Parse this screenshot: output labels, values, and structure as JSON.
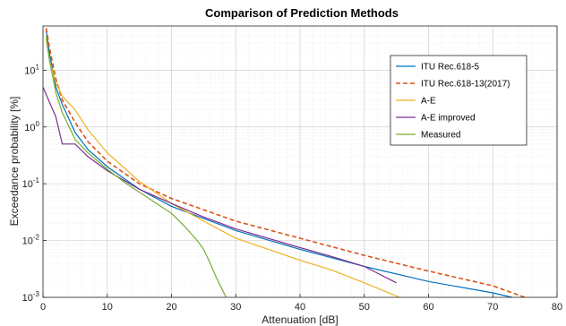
{
  "chart_data": {
    "type": "line",
    "title": "Comparison of Prediction Methods",
    "xlabel": "Attenuation [dB]",
    "ylabel": "Exceedance probability [%]",
    "xlim": [
      0,
      80
    ],
    "ylim": [
      0.001,
      60
    ],
    "yscale": "log",
    "grid": true,
    "minor_grid": true,
    "legend_position": "top-right",
    "x_ticks": [
      0,
      10,
      20,
      30,
      40,
      50,
      60,
      70,
      80
    ],
    "x_tick_labels": [
      "0",
      "10",
      "20",
      "30",
      "40",
      "50",
      "60",
      "70",
      "80"
    ],
    "y_ticks": [
      0.001,
      0.01,
      0.1,
      1,
      10
    ],
    "y_tick_labels": [
      {
        "base": "10",
        "exp": "-3"
      },
      {
        "base": "10",
        "exp": "-2"
      },
      {
        "base": "10",
        "exp": "-1"
      },
      {
        "base": "10",
        "exp": "0"
      },
      {
        "base": "10",
        "exp": "1"
      }
    ],
    "series": [
      {
        "name": "ITU Rec.618-5",
        "color": "#0072BD",
        "dash": "solid",
        "x": [
          0.5,
          1,
          2,
          3,
          5,
          7,
          10,
          15,
          20,
          30,
          40,
          50,
          60,
          70,
          73
        ],
        "y": [
          50,
          20,
          5,
          2.5,
          0.8,
          0.4,
          0.2,
          0.08,
          0.04,
          0.015,
          0.007,
          0.0035,
          0.0019,
          0.0012,
          0.001
        ]
      },
      {
        "name": "ITU Rec.618-13(2017)",
        "color": "#D95319",
        "dash": "dashed",
        "x": [
          0.5,
          1,
          2,
          3,
          5,
          7,
          10,
          15,
          20,
          30,
          40,
          50,
          60,
          70,
          75
        ],
        "y": [
          55,
          25,
          7,
          3,
          1.2,
          0.55,
          0.25,
          0.1,
          0.055,
          0.022,
          0.011,
          0.0055,
          0.0029,
          0.0016,
          0.001
        ]
      },
      {
        "name": "A-E",
        "color": "#EDB120",
        "dash": "solid",
        "x": [
          0.5,
          1,
          2,
          3,
          5,
          7,
          10,
          15,
          20,
          25,
          30,
          40,
          45,
          50,
          55.5
        ],
        "y": [
          35,
          15,
          6,
          3.5,
          2,
          0.9,
          0.35,
          0.11,
          0.045,
          0.022,
          0.011,
          0.0045,
          0.003,
          0.0018,
          0.001
        ]
      },
      {
        "name": "A-E improved",
        "color": "#7E2F8E",
        "dash": "solid",
        "x": [
          0,
          2,
          3,
          5,
          7,
          10,
          15,
          20,
          25,
          30,
          40,
          45,
          50,
          55
        ],
        "y": [
          5,
          1.5,
          0.5,
          0.5,
          0.3,
          0.17,
          0.08,
          0.045,
          0.026,
          0.016,
          0.0075,
          0.0052,
          0.0035,
          0.0018
        ]
      },
      {
        "name": "Measured",
        "color": "#77AC30",
        "dash": "solid",
        "x": [
          0.5,
          1,
          2,
          3,
          5,
          7,
          10,
          13,
          16,
          20,
          22,
          24,
          25,
          26,
          27,
          28,
          28.5
        ],
        "y": [
          40,
          15,
          4,
          1.8,
          0.6,
          0.35,
          0.18,
          0.1,
          0.06,
          0.03,
          0.018,
          0.01,
          0.007,
          0.004,
          0.0022,
          0.0013,
          0.001
        ]
      }
    ]
  }
}
